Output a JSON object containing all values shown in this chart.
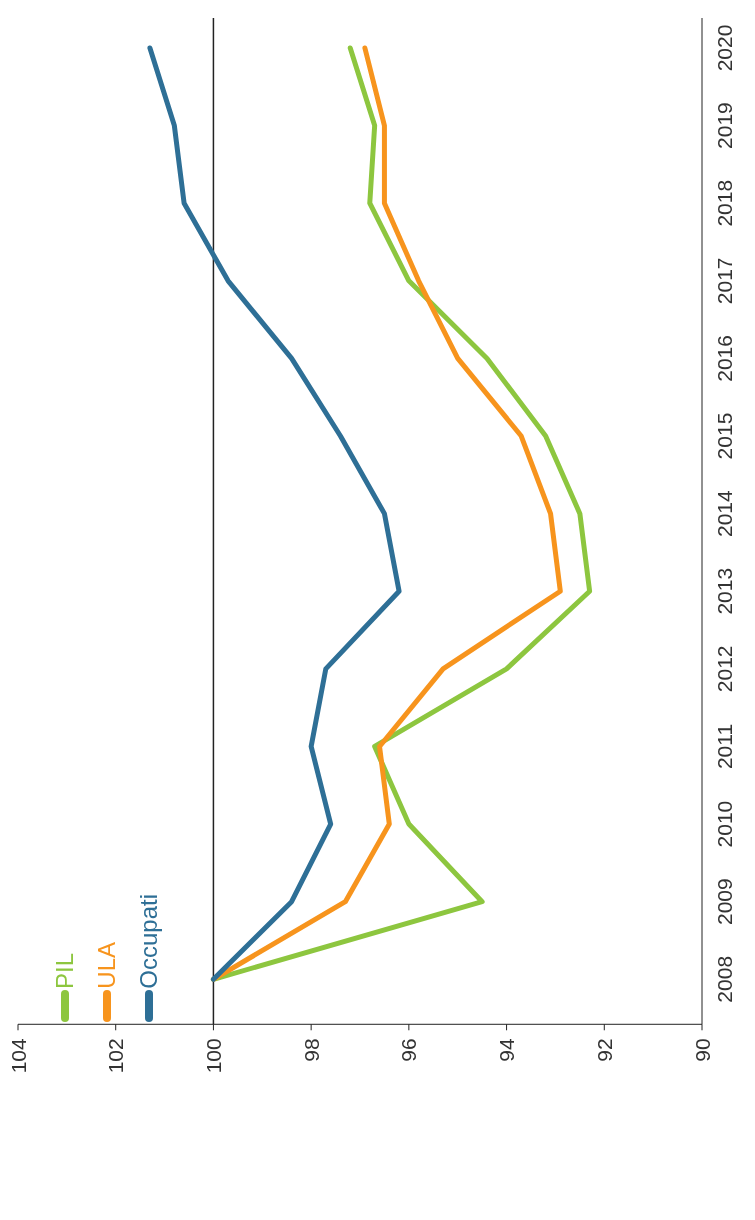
{
  "chart_data": {
    "type": "line",
    "orientation": "horizontal",
    "categories": [
      "2020",
      "2019",
      "2018",
      "2017",
      "2016",
      "2015",
      "2014",
      "2013",
      "2012",
      "2011",
      "2010",
      "2009",
      "2008"
    ],
    "series": [
      {
        "name": "PIL",
        "color": "#8dc63f",
        "values": [
          97.2,
          96.7,
          96.8,
          96.0,
          94.4,
          93.2,
          92.5,
          92.3,
          94.0,
          96.7,
          96.0,
          94.5,
          100
        ]
      },
      {
        "name": "ULA",
        "color": "#f7941d",
        "values": [
          96.9,
          96.5,
          96.5,
          95.8,
          95.0,
          93.7,
          93.1,
          92.9,
          95.3,
          96.6,
          96.4,
          97.3,
          100
        ]
      },
      {
        "name": "Occupati",
        "color": "#2e6f96",
        "values": [
          101.3,
          100.8,
          100.6,
          99.7,
          98.4,
          97.4,
          96.5,
          96.2,
          97.7,
          98.0,
          97.6,
          98.4,
          100
        ]
      }
    ],
    "xlim": [
      104,
      90
    ],
    "xticks": [
      104,
      102,
      100,
      98,
      96,
      94,
      92,
      90
    ],
    "ref_lines": [
      {
        "axis": "x",
        "value": 100
      }
    ],
    "grid": false,
    "legend": "bottom left",
    "marker": "none",
    "line_style": "solid"
  }
}
